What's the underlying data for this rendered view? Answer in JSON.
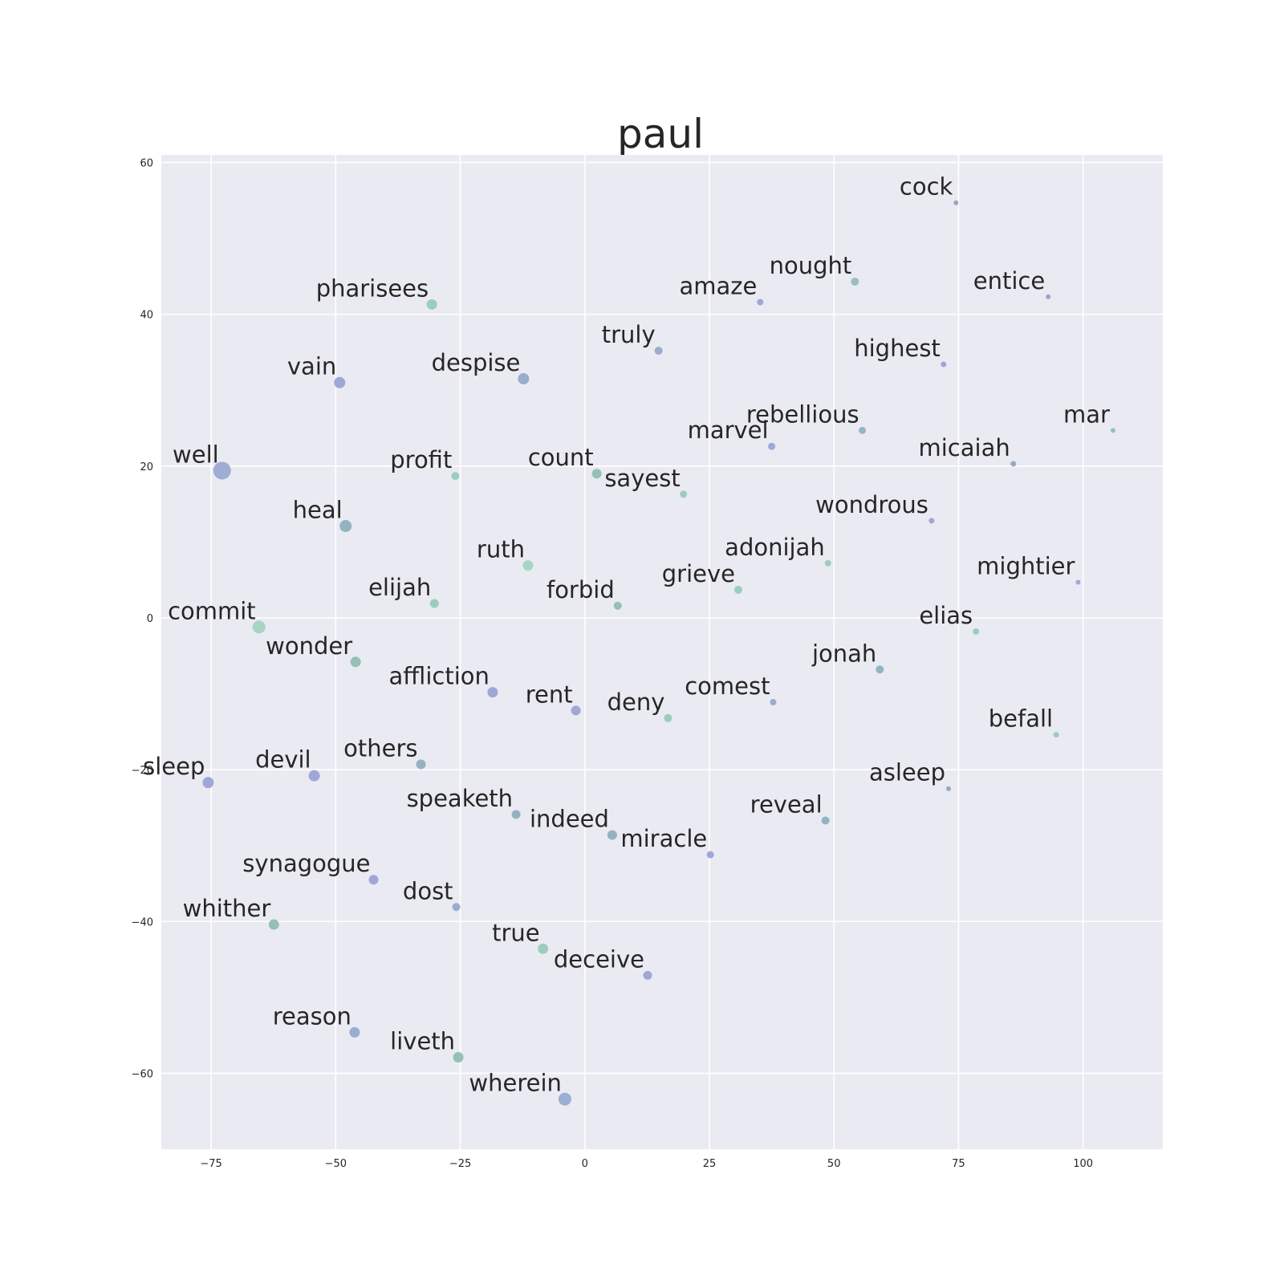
{
  "chart_data": {
    "type": "scatter",
    "title": "paul",
    "xlabel": "",
    "ylabel": "",
    "xlim": [
      -85,
      116
    ],
    "ylim": [
      -70,
      61
    ],
    "xticks": [
      -75,
      -50,
      -25,
      0,
      25,
      50,
      75,
      100
    ],
    "yticks": [
      -60,
      -40,
      -20,
      0,
      20,
      40,
      60
    ],
    "grid": true,
    "palette": {
      "background": "#eaeaf2",
      "grid": "#ffffff",
      "text": "#262626"
    },
    "points": [
      {
        "label": "cock",
        "x": 74.5,
        "y": 54.7,
        "size": 3,
        "color": "#8fa7c2"
      },
      {
        "label": "nought",
        "x": 54.2,
        "y": 44.3,
        "size": 5,
        "color": "#95bdb7"
      },
      {
        "label": "entice",
        "x": 93.0,
        "y": 42.3,
        "size": 3,
        "color": "#8fa7c2"
      },
      {
        "label": "amaze",
        "x": 35.2,
        "y": 41.6,
        "size": 4,
        "color": "#9aa3d5"
      },
      {
        "label": "pharisees",
        "x": -30.7,
        "y": 41.3,
        "size": 6.5,
        "color": "#98cbb8"
      },
      {
        "label": "truly",
        "x": 14.8,
        "y": 35.2,
        "size": 5,
        "color": "#96aacb"
      },
      {
        "label": "highest",
        "x": 72.0,
        "y": 33.4,
        "size": 3.5,
        "color": "#9aa3d5"
      },
      {
        "label": "vain",
        "x": -49.2,
        "y": 31.0,
        "size": 7,
        "color": "#9aa3d5"
      },
      {
        "label": "despise",
        "x": -12.3,
        "y": 31.5,
        "size": 7,
        "color": "#96aacb"
      },
      {
        "label": "mar",
        "x": 106.0,
        "y": 24.7,
        "size": 3,
        "color": "#95bdb7"
      },
      {
        "label": "rebellious",
        "x": 55.7,
        "y": 24.7,
        "size": 4.5,
        "color": "#8fb4c2"
      },
      {
        "label": "marvel",
        "x": 37.5,
        "y": 22.6,
        "size": 4.5,
        "color": "#9aa3d5"
      },
      {
        "label": "micaiah",
        "x": 86.0,
        "y": 20.3,
        "size": 3.5,
        "color": "#8fa7c2"
      },
      {
        "label": "well",
        "x": -72.8,
        "y": 19.4,
        "size": 11,
        "color": "#9aaad0"
      },
      {
        "label": "profit",
        "x": -26.0,
        "y": 18.7,
        "size": 5,
        "color": "#98cbb8"
      },
      {
        "label": "count",
        "x": 2.4,
        "y": 19.0,
        "size": 6,
        "color": "#8fbfb0"
      },
      {
        "label": "sayest",
        "x": 19.8,
        "y": 16.3,
        "size": 4.5,
        "color": "#98cbb8"
      },
      {
        "label": "wondrous",
        "x": 69.6,
        "y": 12.8,
        "size": 3.5,
        "color": "#9aa3d5"
      },
      {
        "label": "heal",
        "x": -48.0,
        "y": 12.1,
        "size": 7.5,
        "color": "#8fb0bd"
      },
      {
        "label": "adonijah",
        "x": 48.8,
        "y": 7.2,
        "size": 4,
        "color": "#98cbb8"
      },
      {
        "label": "ruth",
        "x": -11.4,
        "y": 6.9,
        "size": 6.5,
        "color": "#a3d4c0"
      },
      {
        "label": "mightier",
        "x": 99.0,
        "y": 4.7,
        "size": 3,
        "color": "#9aa3d5"
      },
      {
        "label": "grieve",
        "x": 30.8,
        "y": 3.7,
        "size": 5,
        "color": "#98cbb8"
      },
      {
        "label": "elijah",
        "x": -30.2,
        "y": 1.9,
        "size": 5.5,
        "color": "#98cbb8"
      },
      {
        "label": "forbid",
        "x": 6.6,
        "y": 1.6,
        "size": 5,
        "color": "#8fbfb0"
      },
      {
        "label": "commit",
        "x": -65.4,
        "y": -1.2,
        "size": 8,
        "color": "#a3d4c0"
      },
      {
        "label": "elias",
        "x": 78.5,
        "y": -1.8,
        "size": 4,
        "color": "#98cbb8"
      },
      {
        "label": "wonder",
        "x": -46.0,
        "y": -5.8,
        "size": 6.5,
        "color": "#8fbfb0"
      },
      {
        "label": "jonah",
        "x": 59.2,
        "y": -6.8,
        "size": 5,
        "color": "#8fb0bd"
      },
      {
        "label": "affliction",
        "x": -18.5,
        "y": -9.8,
        "size": 6.5,
        "color": "#9aa3d5"
      },
      {
        "label": "comest",
        "x": 37.8,
        "y": -11.1,
        "size": 4,
        "color": "#96aacb"
      },
      {
        "label": "rent",
        "x": -1.8,
        "y": -12.2,
        "size": 6,
        "color": "#9aa3d5"
      },
      {
        "label": "deny",
        "x": 16.7,
        "y": -13.2,
        "size": 5,
        "color": "#98cbb8"
      },
      {
        "label": "befall",
        "x": 94.6,
        "y": -15.4,
        "size": 3.5,
        "color": "#98cbb8"
      },
      {
        "label": "others",
        "x": -32.9,
        "y": -19.3,
        "size": 6,
        "color": "#8fb0bd"
      },
      {
        "label": "devil",
        "x": -54.3,
        "y": -20.8,
        "size": 7,
        "color": "#9aa3d5"
      },
      {
        "label": "sleep",
        "x": -75.6,
        "y": -21.7,
        "size": 7,
        "color": "#9aa3d5"
      },
      {
        "label": "asleep",
        "x": 73.0,
        "y": -22.5,
        "size": 3,
        "color": "#8fa7c2"
      },
      {
        "label": "speaketh",
        "x": -13.8,
        "y": -25.9,
        "size": 5.5,
        "color": "#8fb0bd"
      },
      {
        "label": "reveal",
        "x": 48.3,
        "y": -26.7,
        "size": 5,
        "color": "#8fb0bd"
      },
      {
        "label": "indeed",
        "x": 5.5,
        "y": -28.6,
        "size": 6,
        "color": "#8fb0bd"
      },
      {
        "label": "miracle",
        "x": 25.2,
        "y": -31.2,
        "size": 4.5,
        "color": "#9aa3d5"
      },
      {
        "label": "synagogue",
        "x": -42.4,
        "y": -34.5,
        "size": 6,
        "color": "#9aa3d5"
      },
      {
        "label": "dost",
        "x": -25.8,
        "y": -38.1,
        "size": 5,
        "color": "#96aacb"
      },
      {
        "label": "whither",
        "x": -62.4,
        "y": -40.4,
        "size": 6.5,
        "color": "#8fbfb0"
      },
      {
        "label": "true",
        "x": -8.4,
        "y": -43.6,
        "size": 6.5,
        "color": "#98cbb8"
      },
      {
        "label": "deceive",
        "x": 12.6,
        "y": -47.1,
        "size": 5.5,
        "color": "#9aa3d5"
      },
      {
        "label": "reason",
        "x": -46.2,
        "y": -54.6,
        "size": 6.5,
        "color": "#96aacb"
      },
      {
        "label": "liveth",
        "x": -25.4,
        "y": -57.9,
        "size": 6.5,
        "color": "#8fbfb0"
      },
      {
        "label": "wherein",
        "x": -4.0,
        "y": -63.4,
        "size": 8,
        "color": "#9aaad0"
      }
    ]
  }
}
